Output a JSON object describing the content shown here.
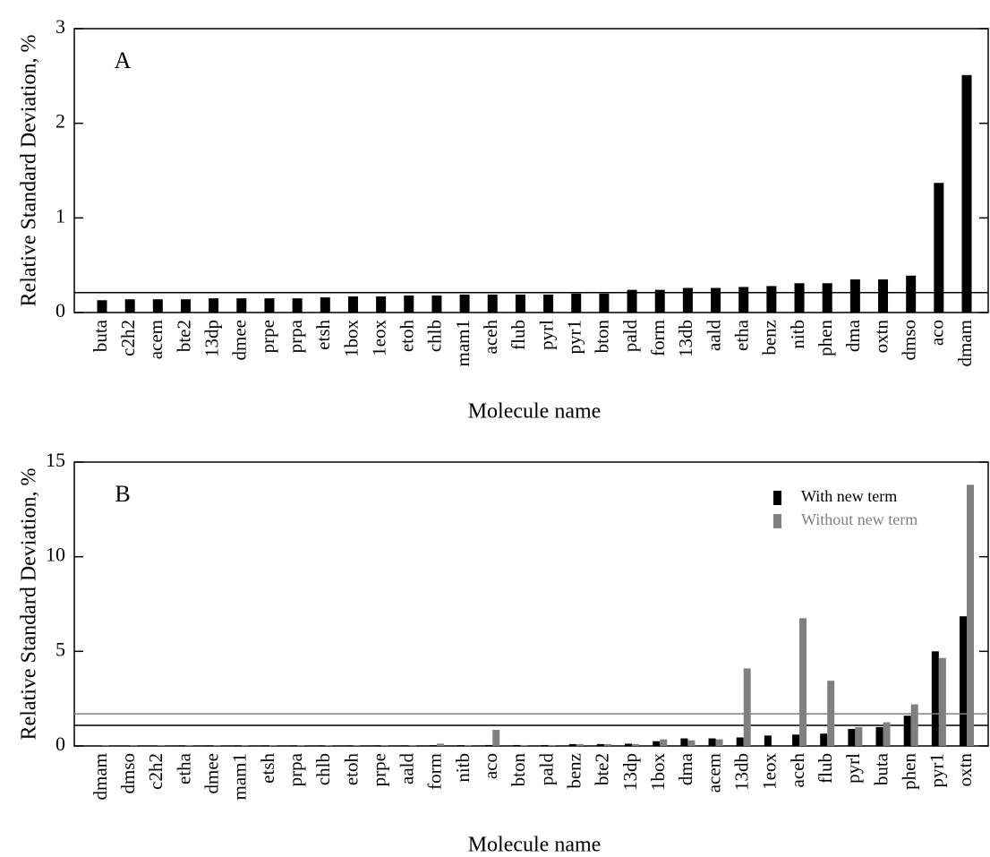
{
  "chart_data": [
    {
      "type": "bar",
      "panel_label": "A",
      "xlabel": "Molecule name",
      "ylabel": "Relative Standard Deviation, %",
      "categories": [
        "buta",
        "c2h2",
        "acem",
        "bte2",
        "13dp",
        "dmee",
        "prpe",
        "prpa",
        "etsh",
        "1box",
        "1eox",
        "etoh",
        "chlb",
        "mam1",
        "aceh",
        "flub",
        "pyrl",
        "pyr1",
        "bton",
        "pald",
        "form",
        "13db",
        "aald",
        "etha",
        "benz",
        "nitb",
        "phen",
        "dma",
        "oxtn",
        "dmso",
        "aco",
        "dmam"
      ],
      "values": [
        0.13,
        0.14,
        0.14,
        0.14,
        0.15,
        0.15,
        0.15,
        0.15,
        0.16,
        0.17,
        0.17,
        0.18,
        0.18,
        0.19,
        0.19,
        0.19,
        0.19,
        0.2,
        0.2,
        0.24,
        0.24,
        0.26,
        0.26,
        0.27,
        0.28,
        0.31,
        0.31,
        0.35,
        0.35,
        0.39,
        1.37,
        2.51
      ],
      "color": "#000000",
      "reference_line": 0.21,
      "ylim": [
        0,
        3
      ],
      "yticks": [
        0,
        1,
        2,
        3
      ]
    },
    {
      "type": "bar",
      "panel_label": "B",
      "xlabel": "Molecule name",
      "ylabel": "Relative Standard Deviation, %",
      "categories": [
        "dmam",
        "dmso",
        "c2h2",
        "etha",
        "dmee",
        "mam1",
        "etsh",
        "prpa",
        "chlb",
        "etoh",
        "prpe",
        "aald",
        "form",
        "nitb",
        "aco",
        "bton",
        "pald",
        "benz",
        "bte2",
        "13dp",
        "1box",
        "dma",
        "acem",
        "13db",
        "1eox",
        "aceh",
        "flub",
        "pyrl",
        "buta",
        "phen",
        "pyr1",
        "oxtn"
      ],
      "series": [
        {
          "name": "With new term",
          "color": "#000000",
          "reference_line": 1.09,
          "values": [
            0.02,
            0.02,
            0.02,
            0.03,
            0.03,
            0.03,
            0.03,
            0.03,
            0.03,
            0.03,
            0.03,
            0.03,
            0.04,
            0.04,
            0.05,
            0.05,
            0.05,
            0.1,
            0.1,
            0.12,
            0.25,
            0.4,
            0.4,
            0.45,
            0.55,
            0.6,
            0.65,
            0.9,
            1.0,
            1.6,
            5.0,
            6.85
          ]
        },
        {
          "name": "Without new term",
          "color": "#808080",
          "reference_line": 1.7,
          "values": [
            0.02,
            0.02,
            0.03,
            0.05,
            0.03,
            0.03,
            0.03,
            0.03,
            0.03,
            0.03,
            0.03,
            0.04,
            0.12,
            0.05,
            0.85,
            0.05,
            0.05,
            0.1,
            0.1,
            0.1,
            0.35,
            0.3,
            0.35,
            4.1,
            0,
            6.75,
            3.45,
            1.0,
            1.25,
            2.2,
            4.65,
            13.8
          ]
        }
      ],
      "ylim": [
        0,
        15
      ],
      "yticks": [
        0,
        5,
        10,
        15
      ]
    }
  ]
}
